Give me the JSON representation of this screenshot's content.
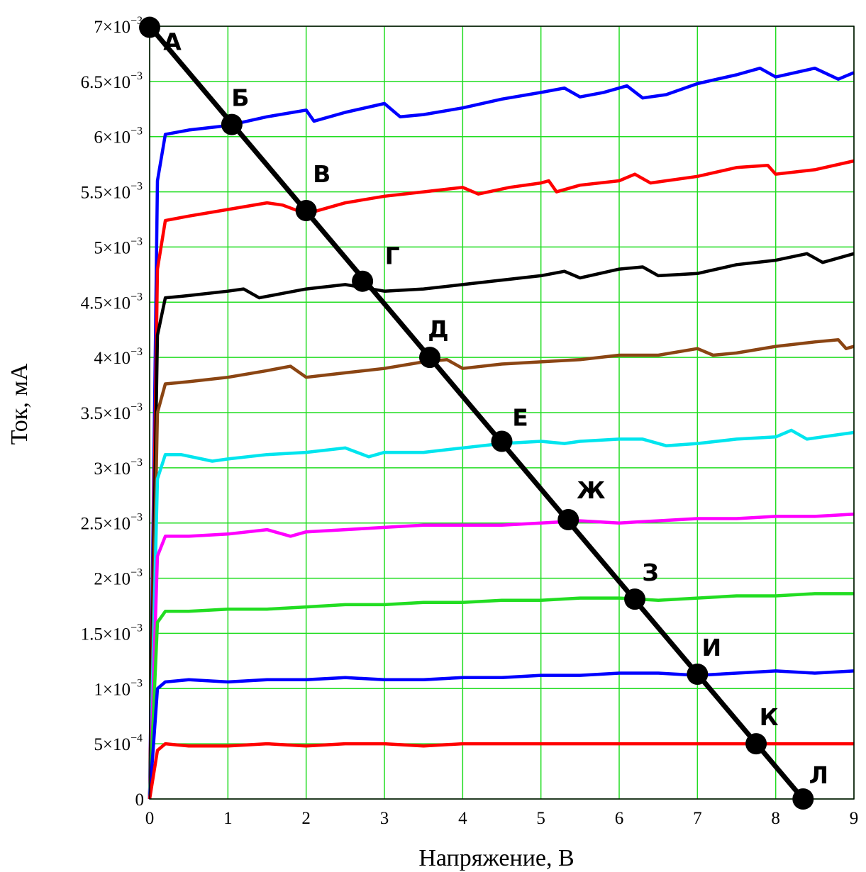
{
  "chart_data": {
    "type": "line",
    "xlabel": "Напряжение, В",
    "ylabel": "Ток, мА",
    "xlim": [
      0,
      9
    ],
    "ylim": [
      0,
      0.007
    ],
    "grid": true,
    "grid_color": "#22dd22",
    "x_ticks": [
      "0",
      "1",
      "2",
      "3",
      "4",
      "5",
      "6",
      "7",
      "8",
      "9"
    ],
    "y_ticks": [
      {
        "value": 0,
        "mant": "0",
        "exp": ""
      },
      {
        "value": 0.0005,
        "mant": "5×10",
        "exp": "−4"
      },
      {
        "value": 0.001,
        "mant": "1×10",
        "exp": "−3"
      },
      {
        "value": 0.0015,
        "mant": "1.5×10",
        "exp": "−3"
      },
      {
        "value": 0.002,
        "mant": "2×10",
        "exp": "−3"
      },
      {
        "value": 0.0025,
        "mant": "2.5×10",
        "exp": "−3"
      },
      {
        "value": 0.003,
        "mant": "3×10",
        "exp": "−3"
      },
      {
        "value": 0.0035,
        "mant": "3.5×10",
        "exp": "−3"
      },
      {
        "value": 0.004,
        "mant": "4×10",
        "exp": "−3"
      },
      {
        "value": 0.0045,
        "mant": "4.5×10",
        "exp": "−3"
      },
      {
        "value": 0.005,
        "mant": "5×10",
        "exp": "−3"
      },
      {
        "value": 0.0055,
        "mant": "5.5×10",
        "exp": "−3"
      },
      {
        "value": 0.006,
        "mant": "6×10",
        "exp": "−3"
      },
      {
        "value": 0.0065,
        "mant": "6.5×10",
        "exp": "−3"
      },
      {
        "value": 0.007,
        "mant": "7×10",
        "exp": "−3"
      }
    ],
    "series": [
      {
        "color": "#0000ff",
        "points": [
          [
            0,
            0
          ],
          [
            0.1,
            0.0056
          ],
          [
            0.2,
            0.00602
          ],
          [
            0.5,
            0.00606
          ],
          [
            1.0,
            0.0061
          ],
          [
            1.5,
            0.00618
          ],
          [
            2.0,
            0.00624
          ],
          [
            2.1,
            0.00614
          ],
          [
            2.5,
            0.00622
          ],
          [
            3.0,
            0.0063
          ],
          [
            3.2,
            0.00618
          ],
          [
            3.5,
            0.0062
          ],
          [
            4.0,
            0.00626
          ],
          [
            4.5,
            0.00634
          ],
          [
            5.0,
            0.0064
          ],
          [
            5.3,
            0.00644
          ],
          [
            5.5,
            0.00636
          ],
          [
            5.8,
            0.0064
          ],
          [
            6.1,
            0.00646
          ],
          [
            6.3,
            0.00635
          ],
          [
            6.6,
            0.00638
          ],
          [
            7.0,
            0.00648
          ],
          [
            7.5,
            0.00656
          ],
          [
            7.8,
            0.00662
          ],
          [
            8.0,
            0.00654
          ],
          [
            8.5,
            0.00662
          ],
          [
            8.8,
            0.00652
          ],
          [
            9.0,
            0.00658
          ]
        ]
      },
      {
        "color": "#ff0000",
        "points": [
          [
            0,
            0
          ],
          [
            0.1,
            0.0048
          ],
          [
            0.2,
            0.00524
          ],
          [
            0.5,
            0.00528
          ],
          [
            1.0,
            0.00534
          ],
          [
            1.5,
            0.0054
          ],
          [
            1.7,
            0.00538
          ],
          [
            2.0,
            0.0053
          ],
          [
            2.5,
            0.0054
          ],
          [
            3.0,
            0.00546
          ],
          [
            3.5,
            0.0055
          ],
          [
            4.0,
            0.00554
          ],
          [
            4.2,
            0.00548
          ],
          [
            4.6,
            0.00554
          ],
          [
            5.0,
            0.00558
          ],
          [
            5.1,
            0.0056
          ],
          [
            5.2,
            0.0055
          ],
          [
            5.5,
            0.00556
          ],
          [
            6.0,
            0.0056
          ],
          [
            6.2,
            0.00566
          ],
          [
            6.4,
            0.00558
          ],
          [
            7.0,
            0.00564
          ],
          [
            7.5,
            0.00572
          ],
          [
            7.9,
            0.00574
          ],
          [
            8.0,
            0.00566
          ],
          [
            8.5,
            0.0057
          ],
          [
            9.0,
            0.00578
          ]
        ]
      },
      {
        "color": "#000000",
        "points": [
          [
            0,
            0
          ],
          [
            0.1,
            0.0042
          ],
          [
            0.2,
            0.00454
          ],
          [
            0.5,
            0.00456
          ],
          [
            1.0,
            0.0046
          ],
          [
            1.2,
            0.00462
          ],
          [
            1.4,
            0.00454
          ],
          [
            1.7,
            0.00458
          ],
          [
            2.0,
            0.00462
          ],
          [
            2.5,
            0.00466
          ],
          [
            3.0,
            0.0046
          ],
          [
            3.5,
            0.00462
          ],
          [
            4.0,
            0.00466
          ],
          [
            4.5,
            0.0047
          ],
          [
            5.0,
            0.00474
          ],
          [
            5.3,
            0.00478
          ],
          [
            5.5,
            0.00472
          ],
          [
            6.0,
            0.0048
          ],
          [
            6.3,
            0.00482
          ],
          [
            6.5,
            0.00474
          ],
          [
            7.0,
            0.00476
          ],
          [
            7.5,
            0.00484
          ],
          [
            8.0,
            0.00488
          ],
          [
            8.4,
            0.00494
          ],
          [
            8.6,
            0.00486
          ],
          [
            9.0,
            0.00494
          ]
        ]
      },
      {
        "color": "#8b4513",
        "points": [
          [
            0,
            0
          ],
          [
            0.1,
            0.0035
          ],
          [
            0.2,
            0.00376
          ],
          [
            0.5,
            0.00378
          ],
          [
            1.0,
            0.00382
          ],
          [
            1.5,
            0.00388
          ],
          [
            1.8,
            0.00392
          ],
          [
            2.0,
            0.00382
          ],
          [
            2.5,
            0.00386
          ],
          [
            3.0,
            0.0039
          ],
          [
            3.5,
            0.00396
          ],
          [
            3.8,
            0.00398
          ],
          [
            4.0,
            0.0039
          ],
          [
            4.5,
            0.00394
          ],
          [
            5.0,
            0.00396
          ],
          [
            5.5,
            0.00398
          ],
          [
            6.0,
            0.00402
          ],
          [
            6.5,
            0.00402
          ],
          [
            7.0,
            0.00408
          ],
          [
            7.2,
            0.00402
          ],
          [
            7.5,
            0.00404
          ],
          [
            8.0,
            0.0041
          ],
          [
            8.5,
            0.00414
          ],
          [
            8.8,
            0.00416
          ],
          [
            8.9,
            0.00408
          ],
          [
            9.0,
            0.0041
          ]
        ]
      },
      {
        "color": "#00e5ee",
        "points": [
          [
            0,
            0
          ],
          [
            0.1,
            0.0029
          ],
          [
            0.2,
            0.00312
          ],
          [
            0.4,
            0.00312
          ],
          [
            0.8,
            0.00306
          ],
          [
            1.0,
            0.00308
          ],
          [
            1.5,
            0.00312
          ],
          [
            2.0,
            0.00314
          ],
          [
            2.5,
            0.00318
          ],
          [
            2.8,
            0.0031
          ],
          [
            3.0,
            0.00314
          ],
          [
            3.5,
            0.00314
          ],
          [
            4.0,
            0.00318
          ],
          [
            4.5,
            0.00322
          ],
          [
            5.0,
            0.00324
          ],
          [
            5.3,
            0.00322
          ],
          [
            5.5,
            0.00324
          ],
          [
            6.0,
            0.00326
          ],
          [
            6.3,
            0.00326
          ],
          [
            6.6,
            0.0032
          ],
          [
            7.0,
            0.00322
          ],
          [
            7.5,
            0.00326
          ],
          [
            8.0,
            0.00328
          ],
          [
            8.2,
            0.00334
          ],
          [
            8.4,
            0.00326
          ],
          [
            9.0,
            0.00332
          ]
        ]
      },
      {
        "color": "#ff00ff",
        "points": [
          [
            0,
            0
          ],
          [
            0.1,
            0.0022
          ],
          [
            0.2,
            0.00238
          ],
          [
            0.5,
            0.00238
          ],
          [
            1.0,
            0.0024
          ],
          [
            1.5,
            0.00244
          ],
          [
            1.8,
            0.00238
          ],
          [
            2.0,
            0.00242
          ],
          [
            2.5,
            0.00244
          ],
          [
            3.0,
            0.00246
          ],
          [
            3.5,
            0.00248
          ],
          [
            4.0,
            0.00248
          ],
          [
            4.5,
            0.00248
          ],
          [
            5.0,
            0.0025
          ],
          [
            5.5,
            0.00252
          ],
          [
            6.0,
            0.0025
          ],
          [
            6.5,
            0.00252
          ],
          [
            7.0,
            0.00254
          ],
          [
            7.5,
            0.00254
          ],
          [
            8.0,
            0.00256
          ],
          [
            8.5,
            0.00256
          ],
          [
            9.0,
            0.00258
          ]
        ]
      },
      {
        "color": "#22dd22",
        "points": [
          [
            0,
            0
          ],
          [
            0.1,
            0.0016
          ],
          [
            0.2,
            0.0017
          ],
          [
            0.5,
            0.0017
          ],
          [
            1.0,
            0.00172
          ],
          [
            1.5,
            0.00172
          ],
          [
            2.0,
            0.00174
          ],
          [
            2.5,
            0.00176
          ],
          [
            3.0,
            0.00176
          ],
          [
            3.5,
            0.00178
          ],
          [
            4.0,
            0.00178
          ],
          [
            4.5,
            0.0018
          ],
          [
            5.0,
            0.0018
          ],
          [
            5.5,
            0.00182
          ],
          [
            6.0,
            0.00182
          ],
          [
            6.5,
            0.0018
          ],
          [
            7.0,
            0.00182
          ],
          [
            7.5,
            0.00184
          ],
          [
            8.0,
            0.00184
          ],
          [
            8.5,
            0.00186
          ],
          [
            9.0,
            0.00186
          ]
        ]
      },
      {
        "color": "#0000ff",
        "points": [
          [
            0,
            0
          ],
          [
            0.1,
            0.001
          ],
          [
            0.2,
            0.00106
          ],
          [
            0.5,
            0.00108
          ],
          [
            1.0,
            0.00106
          ],
          [
            1.5,
            0.00108
          ],
          [
            2.0,
            0.00108
          ],
          [
            2.5,
            0.0011
          ],
          [
            3.0,
            0.00108
          ],
          [
            3.5,
            0.00108
          ],
          [
            4.0,
            0.0011
          ],
          [
            4.5,
            0.0011
          ],
          [
            5.0,
            0.00112
          ],
          [
            5.5,
            0.00112
          ],
          [
            6.0,
            0.00114
          ],
          [
            6.5,
            0.00114
          ],
          [
            7.0,
            0.00112
          ],
          [
            7.5,
            0.00114
          ],
          [
            8.0,
            0.00116
          ],
          [
            8.5,
            0.00114
          ],
          [
            9.0,
            0.00116
          ]
        ]
      },
      {
        "color": "#ff0000",
        "points": [
          [
            0,
            0
          ],
          [
            0.1,
            0.00044
          ],
          [
            0.2,
            0.0005
          ],
          [
            0.5,
            0.00048
          ],
          [
            1.0,
            0.00048
          ],
          [
            1.5,
            0.0005
          ],
          [
            2.0,
            0.00048
          ],
          [
            2.5,
            0.0005
          ],
          [
            3.0,
            0.0005
          ],
          [
            3.5,
            0.00048
          ],
          [
            4.0,
            0.0005
          ],
          [
            5.0,
            0.0005
          ],
          [
            6.0,
            0.0005
          ],
          [
            7.0,
            0.0005
          ],
          [
            8.0,
            0.0005
          ],
          [
            8.5,
            0.0005
          ],
          [
            9.0,
            0.0005
          ]
        ]
      }
    ],
    "load_line": {
      "color": "#000000",
      "points": [
        [
          0,
          0.007
        ],
        [
          8.35,
          0
        ]
      ]
    },
    "operating_points": [
      {
        "label": "А",
        "x": 0.0,
        "y": 0.00699
      },
      {
        "label": "Б",
        "x": 1.05,
        "y": 0.00611
      },
      {
        "label": "В",
        "x": 2.0,
        "y": 0.00533
      },
      {
        "label": "Г",
        "x": 2.72,
        "y": 0.00469
      },
      {
        "label": "Д",
        "x": 3.58,
        "y": 0.004
      },
      {
        "label": "Е",
        "x": 4.5,
        "y": 0.00324
      },
      {
        "label": "Ж",
        "x": 5.35,
        "y": 0.00253
      },
      {
        "label": "З",
        "x": 6.2,
        "y": 0.00181
      },
      {
        "label": "И",
        "x": 7.0,
        "y": 0.00113
      },
      {
        "label": "К",
        "x": 7.75,
        "y": 0.0005
      },
      {
        "label": "Л",
        "x": 8.35,
        "y": 0.0
      }
    ]
  }
}
